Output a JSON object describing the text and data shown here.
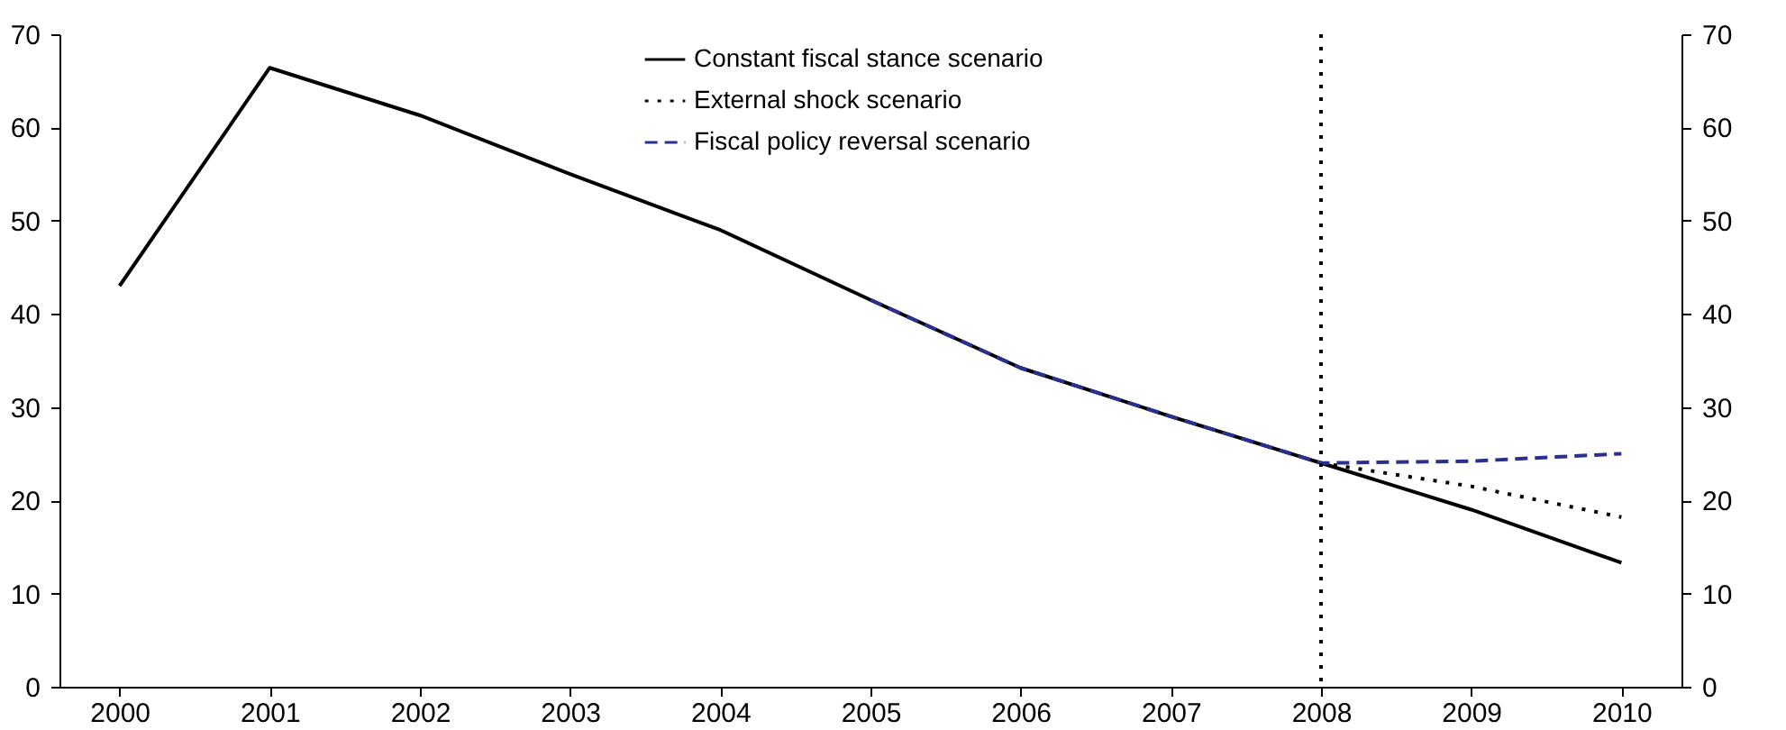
{
  "chart_data": {
    "type": "line",
    "categories": [
      "2000",
      "2001",
      "2002",
      "2003",
      "2004",
      "2005",
      "2006",
      "2007",
      "2008",
      "2009",
      "2010"
    ],
    "series": [
      {
        "name": "Constant fiscal stance scenario",
        "color": "#000000",
        "line_style": "solid",
        "values": [
          43,
          66.4,
          61.3,
          55,
          49,
          41.5,
          34.2,
          29,
          24,
          19,
          13.3
        ]
      },
      {
        "name": "External shock scenario",
        "color": "#000000",
        "line_style": "dotted",
        "values": [
          null,
          null,
          null,
          null,
          null,
          null,
          null,
          null,
          24,
          21.5,
          18.2
        ]
      },
      {
        "name": "Fiscal policy reversal scenario",
        "color": "#2b2f8f",
        "line_style": "dashed",
        "values": [
          null,
          null,
          null,
          null,
          null,
          41.5,
          34.2,
          29,
          24,
          24.2,
          25
        ]
      }
    ],
    "ylim": [
      0,
      70
    ],
    "yticks": [
      0,
      10,
      20,
      30,
      40,
      50,
      60,
      70
    ],
    "y2lim": [
      0,
      70
    ],
    "y2ticks": [
      0,
      10,
      20,
      30,
      40,
      50,
      60,
      70
    ],
    "ref_lines": [
      {
        "axis": "x",
        "value": "2008",
        "color": "#000000",
        "line_style": "dotted"
      }
    ],
    "legend": "top",
    "grid": false
  }
}
